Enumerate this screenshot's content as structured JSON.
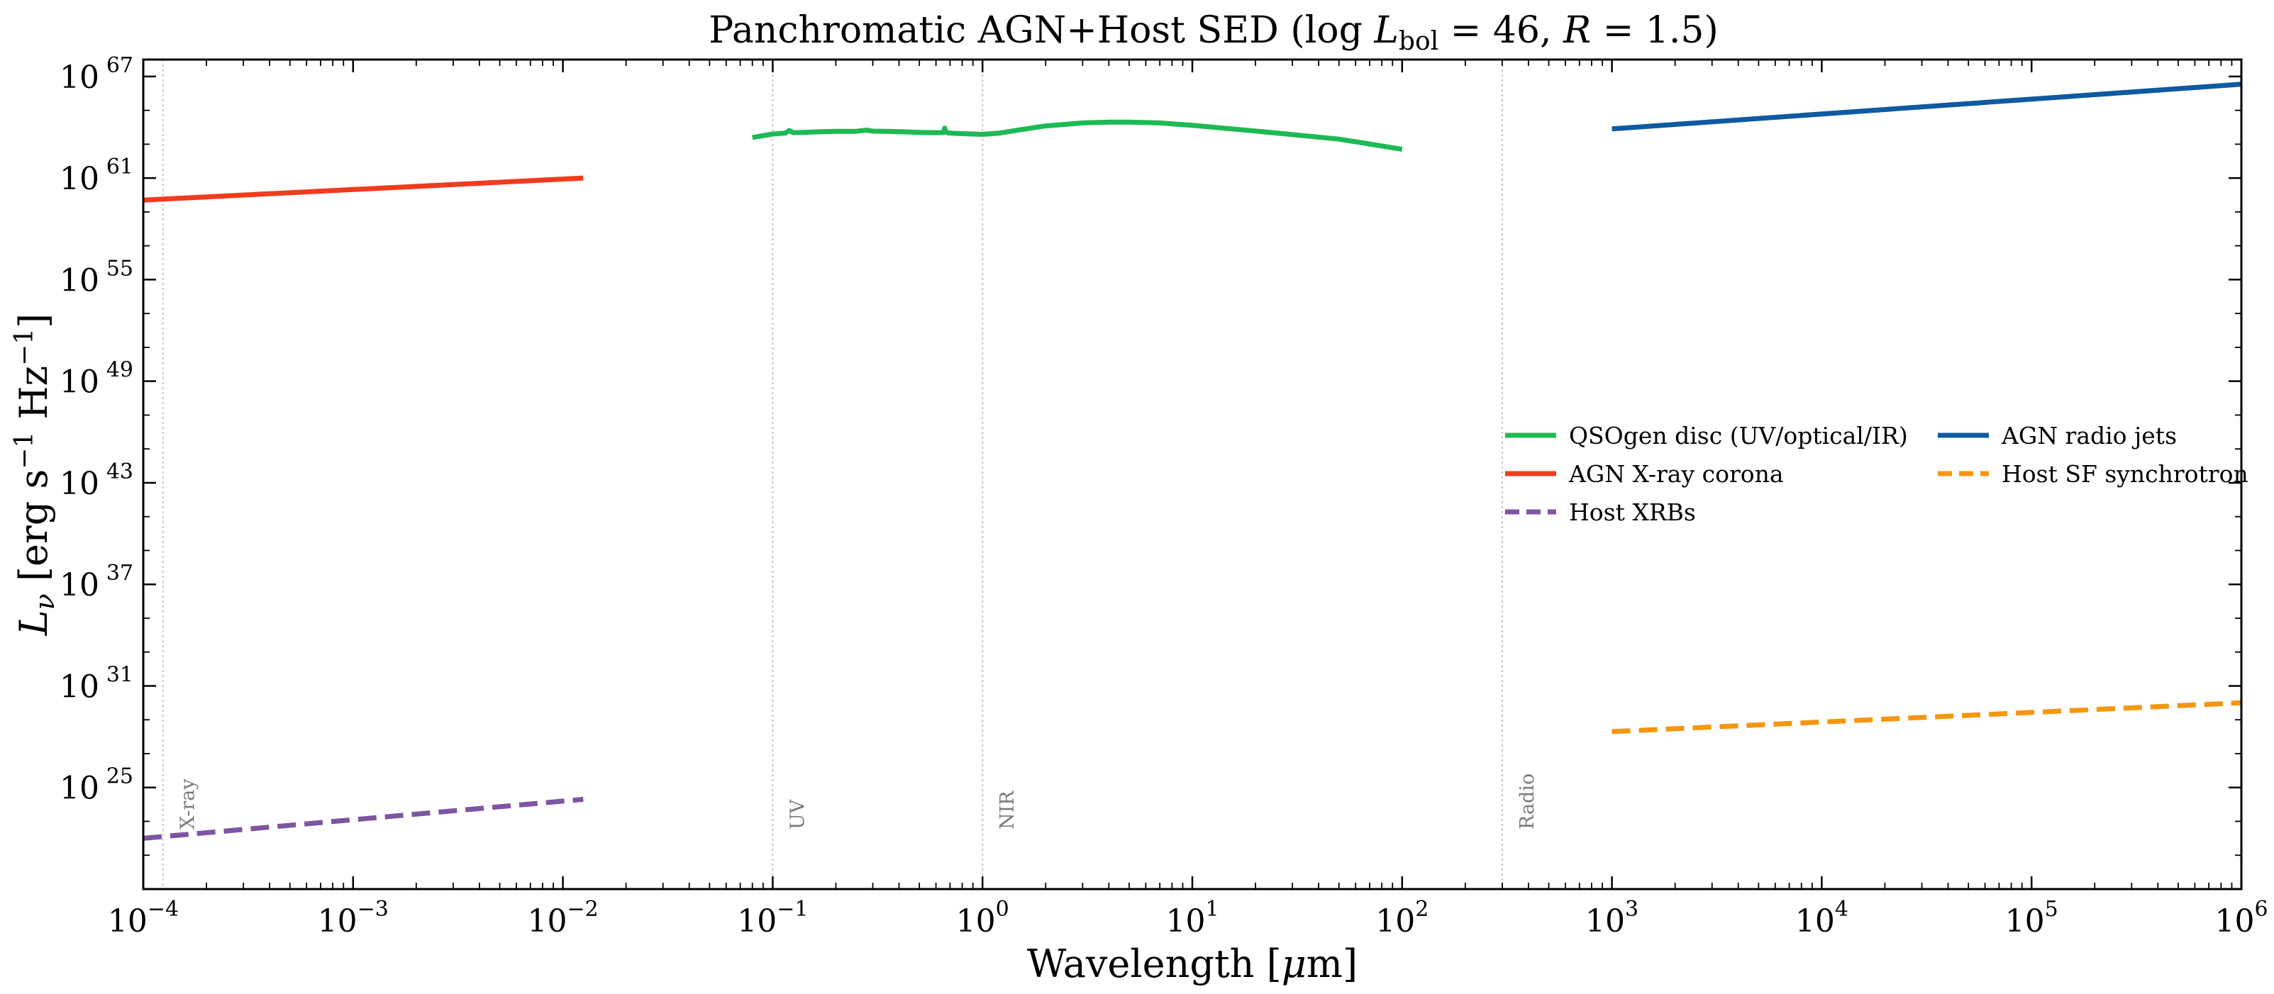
{
  "chart_data": {
    "type": "line",
    "title": "Panchromatic AGN+Host SED  (log L_bol = 46, R = 1.5)",
    "title_parts": {
      "main": "Panchromatic AGN+Host SED  (log ",
      "L": "L",
      "L_sub": "bol",
      "rest": " = 46, ",
      "R": "R",
      "R_rest": " = 1.5)"
    },
    "xlabel": "Wavelength [μm]",
    "xlabel_parts": {
      "main": "Wavelength [",
      "mu": "μ",
      "unit": "m]"
    },
    "ylabel": "L_ν [erg s^-1 Hz^-1]",
    "ylabel_parts": {
      "L": "L",
      "nu": "ν",
      "unit": " [erg s",
      "exp1": "−1",
      "hz": " Hz",
      "exp2": "−1",
      "close": "]"
    },
    "x_scale": "log",
    "y_scale": "log",
    "xlim": [
      0.0001,
      1000000
    ],
    "ylim": [
      1e+19,
      1e+68
    ],
    "x_ticks": [
      {
        "value": 0.0001,
        "base": "10",
        "exp": "−4"
      },
      {
        "value": 0.001,
        "base": "10",
        "exp": "−3"
      },
      {
        "value": 0.01,
        "base": "10",
        "exp": "−2"
      },
      {
        "value": 0.1,
        "base": "10",
        "exp": "−1"
      },
      {
        "value": 1,
        "base": "10",
        "exp": "0"
      },
      {
        "value": 10,
        "base": "10",
        "exp": "1"
      },
      {
        "value": 100,
        "base": "10",
        "exp": "2"
      },
      {
        "value": 1000,
        "base": "10",
        "exp": "3"
      },
      {
        "value": 10000,
        "base": "10",
        "exp": "4"
      },
      {
        "value": 100000,
        "base": "10",
        "exp": "5"
      },
      {
        "value": 1000000,
        "base": "10",
        "exp": "6"
      }
    ],
    "y_ticks": [
      {
        "value": 1e+25,
        "base": "10",
        "exp": "25"
      },
      {
        "value": 1e+31,
        "base": "10",
        "exp": "31"
      },
      {
        "value": 1e+37,
        "base": "10",
        "exp": "37"
      },
      {
        "value": 1e+43,
        "base": "10",
        "exp": "43"
      },
      {
        "value": 1e+49,
        "base": "10",
        "exp": "49"
      },
      {
        "value": 1e+55,
        "base": "10",
        "exp": "55"
      },
      {
        "value": 1e+61,
        "base": "10",
        "exp": "61"
      },
      {
        "value": 1e+67,
        "base": "10",
        "exp": "67"
      }
    ],
    "bands": [
      {
        "label": "X-ray",
        "x": 0.000124
      },
      {
        "label": "UV",
        "x": 0.1
      },
      {
        "label": "NIR",
        "x": 1
      },
      {
        "label": "Radio",
        "x": 300
      }
    ],
    "grid": false,
    "legend_position": "center-right",
    "series": [
      {
        "name": "QSOgen disc (UV/optical/IR)",
        "color": "#1db954",
        "style": "solid",
        "x": [
          0.08,
          0.1,
          0.115,
          0.12,
          0.125,
          0.14,
          0.17,
          0.2,
          0.25,
          0.28,
          0.3,
          0.35,
          0.4,
          0.5,
          0.6,
          0.65,
          0.66,
          0.67,
          0.7,
          0.8,
          1.0,
          1.2,
          1.5,
          2.0,
          3.0,
          4.0,
          5.0,
          7.0,
          10.0,
          20.0,
          50.0,
          100.0
        ],
        "y": [
          2.5e+63,
          4e+63,
          4.5e+63,
          6.5e+63,
          4.8e+63,
          5e+63,
          5.5e+63,
          5.8e+63,
          5.8e+63,
          6.8e+63,
          5.9e+63,
          5.7e+63,
          5.5e+63,
          5e+63,
          4.8e+63,
          4.9e+63,
          9e+63,
          5e+63,
          4.5e+63,
          4.2e+63,
          3.8e+63,
          4.5e+63,
          7e+63,
          1.2e+64,
          1.8e+64,
          2e+64,
          2e+64,
          1.8e+64,
          1.3e+64,
          6e+63,
          2e+63,
          5e+62
        ]
      },
      {
        "name": "AGN X-ray corona",
        "color": "#f03c1e",
        "style": "solid",
        "x": [
          0.0001,
          0.0125
        ],
        "y": [
          5e+59,
          1e+61
        ]
      },
      {
        "name": "Host XRBs",
        "color": "#7e55a0",
        "style": "dashed",
        "x": [
          0.0001,
          0.0125
        ],
        "y": [
          1e+22,
          2e+24
        ]
      },
      {
        "name": "AGN radio jets",
        "color": "#0f5aa0",
        "style": "solid",
        "x": [
          1000,
          1000000
        ],
        "y": [
          8e+63,
          3.5e+66
        ]
      },
      {
        "name": "Host SF synchrotron",
        "color": "#f5960f",
        "style": "dashed",
        "x": [
          1000,
          1000000
        ],
        "y": [
          2e+28,
          1e+30
        ]
      }
    ],
    "legend": {
      "columns": [
        [
          "QSOgen disc (UV/optical/IR)",
          "AGN X-ray corona",
          "Host XRBs"
        ],
        [
          "AGN radio jets",
          "Host SF synchrotron"
        ]
      ]
    }
  }
}
